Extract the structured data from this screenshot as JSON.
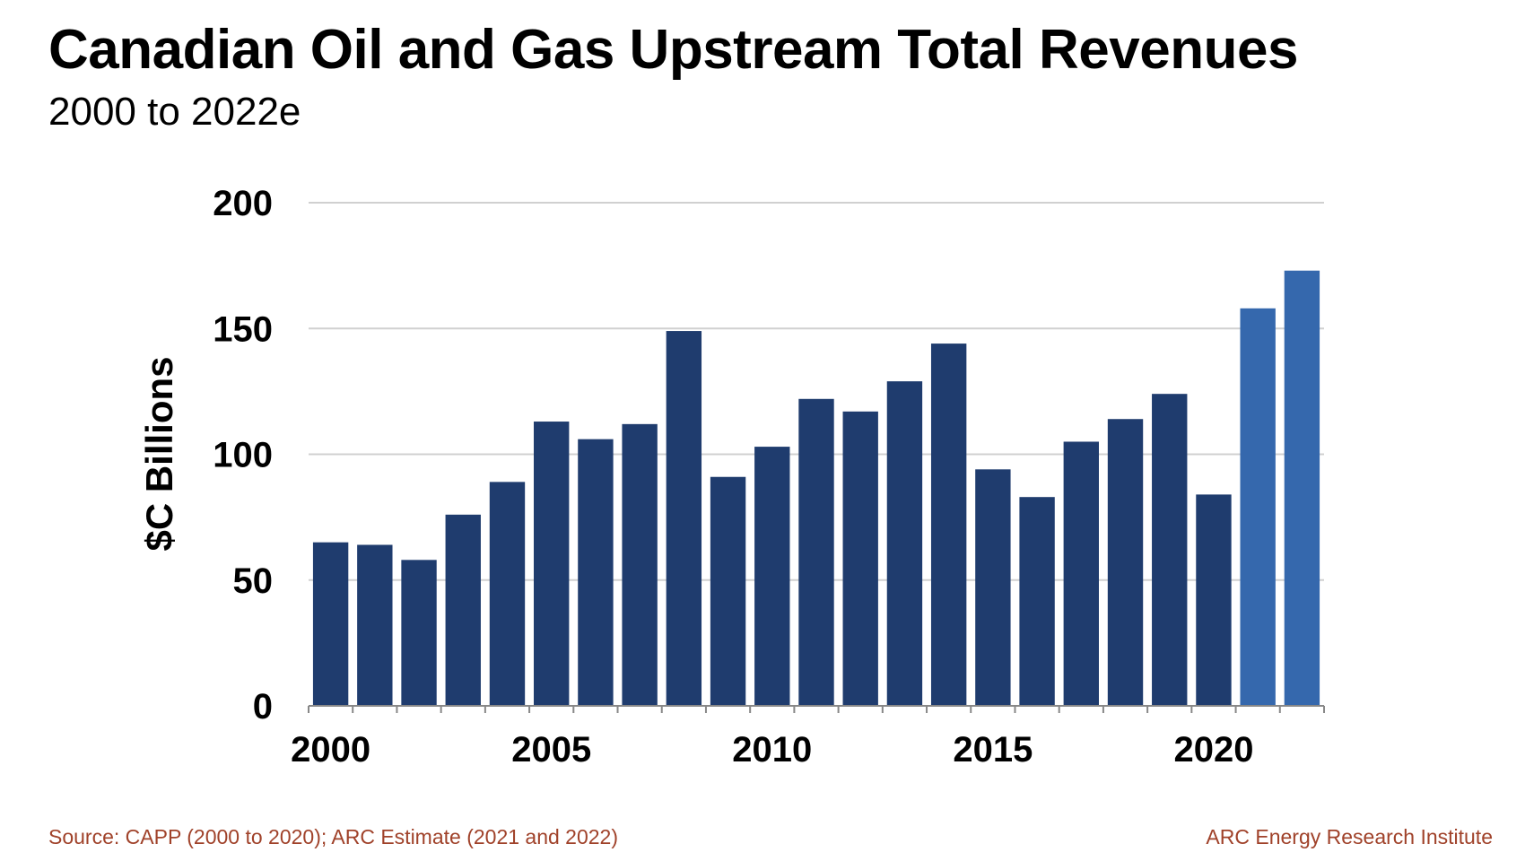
{
  "chart_data": {
    "type": "bar",
    "title": "Canadian Oil and Gas Upstream Total Revenues",
    "subtitle": "2000 to 2022e",
    "ylabel": "$C Billions",
    "xlabel": "",
    "ylim": [
      0,
      200
    ],
    "yticks": [
      "0",
      "50",
      "100",
      "150",
      "200"
    ],
    "xticks": [
      "2000",
      "2005",
      "2010",
      "2015",
      "2020"
    ],
    "grid": true,
    "categories": [
      "2000",
      "2001",
      "2002",
      "2003",
      "2004",
      "2005",
      "2006",
      "2007",
      "2008",
      "2009",
      "2010",
      "2011",
      "2012",
      "2013",
      "2014",
      "2015",
      "2016",
      "2017",
      "2018",
      "2019",
      "2020",
      "2021",
      "2022"
    ],
    "values": [
      65,
      64,
      58,
      76,
      89,
      113,
      106,
      112,
      149,
      91,
      103,
      122,
      117,
      129,
      144,
      94,
      83,
      105,
      114,
      124,
      84,
      158,
      173
    ],
    "estimate_categories": [
      "2021",
      "2022"
    ],
    "colors": {
      "actual": "#1f3c6e",
      "estimate": "#3568ad",
      "grid": "#d0d0d0",
      "axis": "#888888"
    }
  },
  "footer": {
    "source": "Source: CAPP (2000 to 2020); ARC Estimate (2021 and 2022)",
    "credit": "ARC Energy Research Institute",
    "color": "#a0422a"
  }
}
